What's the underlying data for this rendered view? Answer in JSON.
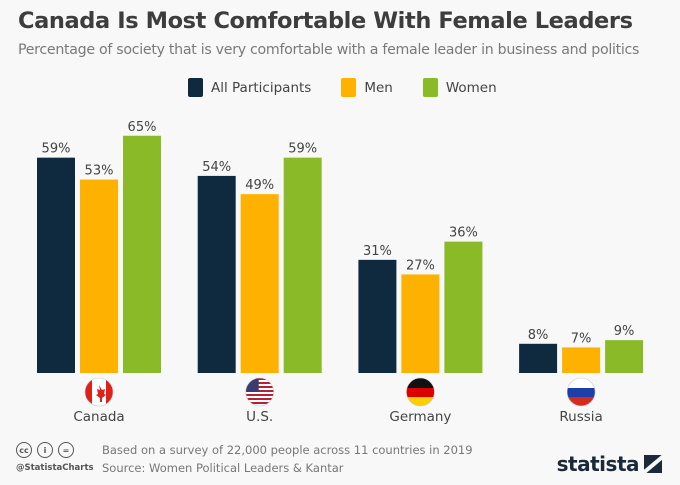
{
  "chart_data": {
    "type": "bar",
    "title": "Canada Is Most Comfortable With Female Leaders",
    "subtitle": "Percentage of society that is very comfortable with a female leader in business and politics",
    "categories": [
      "Canada",
      "U.S.",
      "Germany",
      "Russia"
    ],
    "category_icons": [
      "canada-flag-icon",
      "us-flag-icon",
      "germany-flag-icon",
      "russia-flag-icon"
    ],
    "series": [
      {
        "name": "All Participants",
        "color": "#0f2a3f",
        "values": [
          59,
          54,
          31,
          8
        ]
      },
      {
        "name": "Men",
        "color": "#ffb100",
        "values": [
          53,
          49,
          27,
          7
        ]
      },
      {
        "name": "Women",
        "color": "#8aba27",
        "values": [
          65,
          59,
          36,
          9
        ]
      }
    ],
    "value_suffix": "%",
    "xlabel": "",
    "ylabel": "",
    "ylim": [
      0,
      65
    ],
    "grid": false,
    "legend_position": "top-center"
  },
  "footer": {
    "note": "Based on a survey of 22,000 people across 11 countries in 2019",
    "source": "Source: Women Political Leaders & Kantar",
    "handle": "@StatistaCharts",
    "brand": "statista",
    "license_icons": [
      "cc",
      "i",
      "="
    ]
  }
}
